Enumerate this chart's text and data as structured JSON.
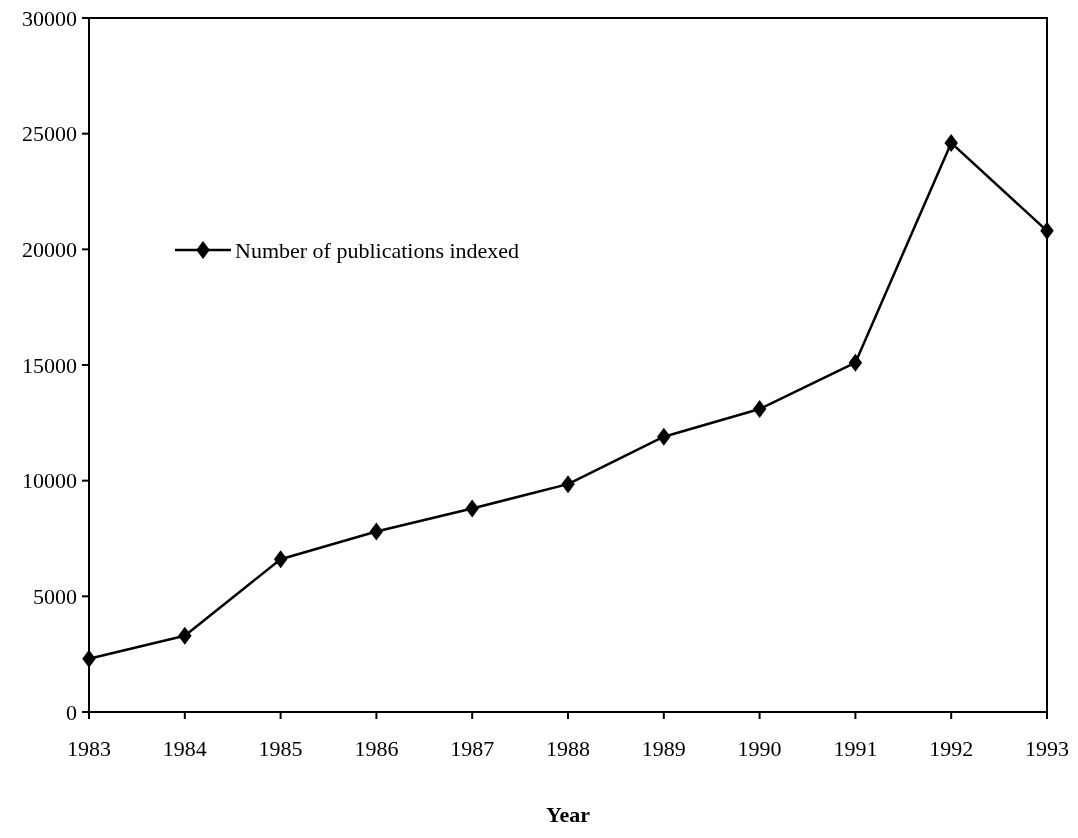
{
  "chart_data": {
    "type": "line",
    "xlabel": "Year",
    "x": [
      1983,
      1984,
      1985,
      1986,
      1987,
      1988,
      1989,
      1990,
      1991,
      1992,
      1993
    ],
    "series": [
      {
        "name": "Number of publications indexed",
        "color": "#000000",
        "values": [
          2300,
          3300,
          6600,
          7800,
          8800,
          9850,
          11900,
          13100,
          15100,
          24600,
          20800
        ]
      }
    ],
    "xlim": [
      1983,
      1993
    ],
    "xticks": [
      1983,
      1984,
      1985,
      1986,
      1987,
      1988,
      1989,
      1990,
      1991,
      1992,
      1993
    ],
    "ylim": [
      0,
      30000
    ],
    "yticks": [
      0,
      5000,
      10000,
      15000,
      20000,
      25000,
      30000
    ],
    "marker": "diamond",
    "line_style": "solid",
    "legend": "left",
    "grid": false
  }
}
